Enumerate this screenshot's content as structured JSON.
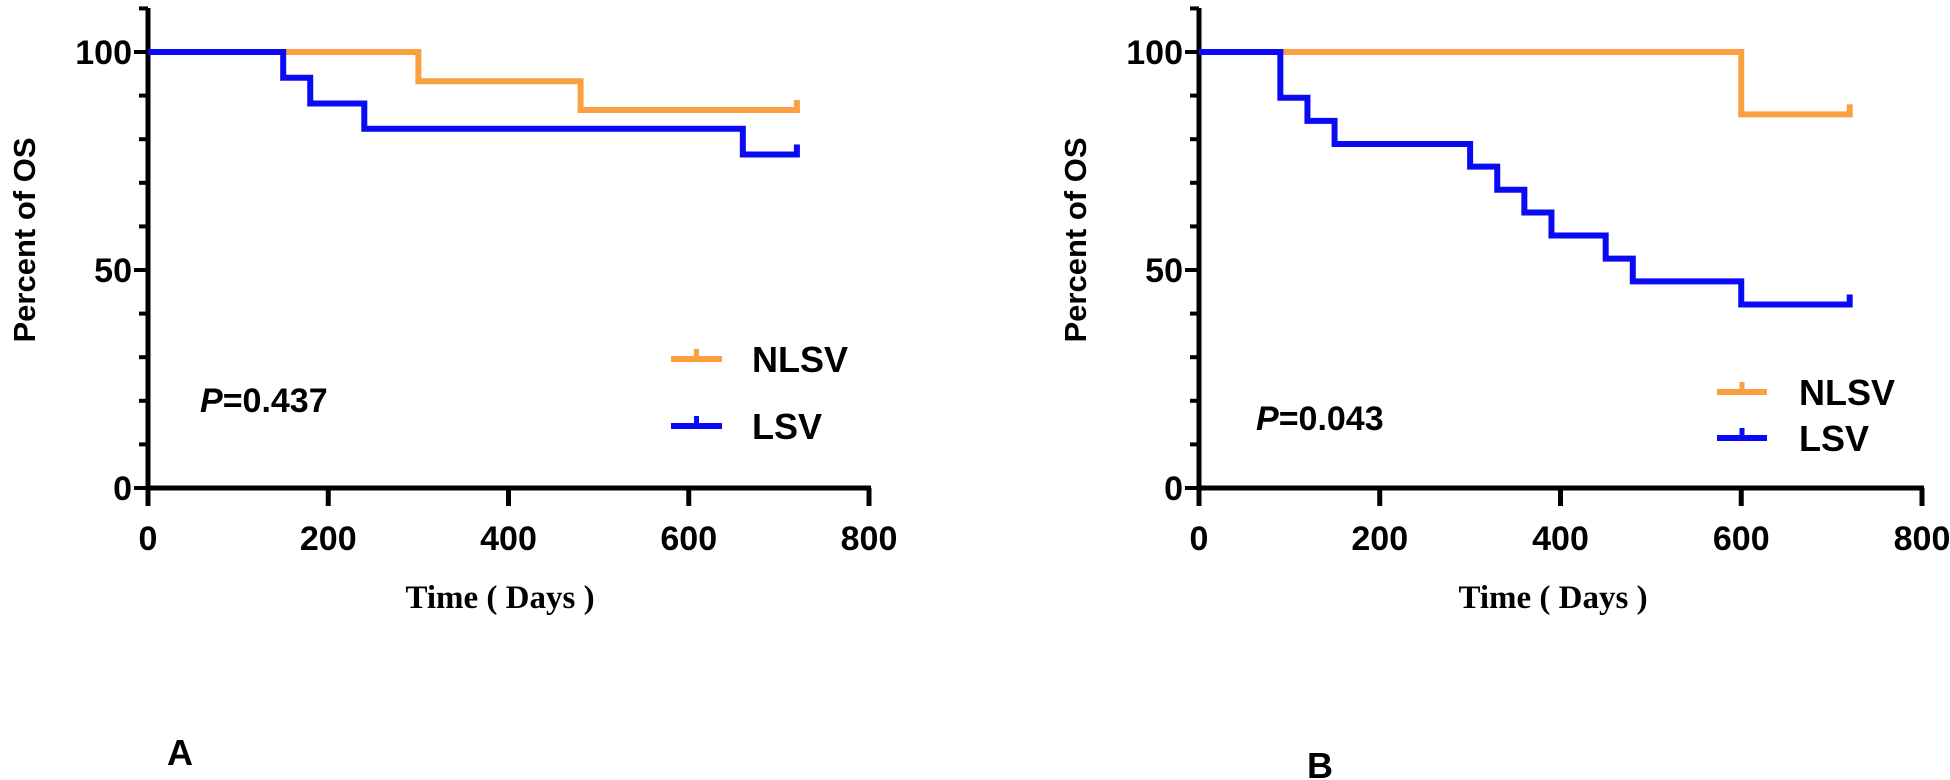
{
  "colors": {
    "NLSV": "#FBA040",
    "LSV": "#0A0AF5",
    "axis": "#000000"
  },
  "chart_data": [
    {
      "type": "line",
      "subtype": "kaplan-meier step",
      "panel_label": "A",
      "xlabel": "Time ( Days )",
      "ylabel": "Percent of OS",
      "xlim": [
        0,
        800
      ],
      "ylim": [
        0,
        110
      ],
      "xticks": [
        "0",
        "200",
        "400",
        "600",
        "800"
      ],
      "yticks": [
        "0",
        "50",
        "100"
      ],
      "annotation": {
        "prefix": "P",
        "text": "=0.437"
      },
      "legend_position": "lower-right",
      "series": [
        {
          "name": "NLSV",
          "color_key": "NLSV",
          "x": [
            0,
            300,
            480,
            720
          ],
          "y": [
            100,
            93.3,
            86.7,
            86.7
          ],
          "censored_at": [
            720
          ]
        },
        {
          "name": "LSV",
          "color_key": "LSV",
          "x": [
            0,
            150,
            180,
            240,
            660,
            720
          ],
          "y": [
            100,
            94.1,
            88.2,
            82.4,
            76.5,
            76.5
          ],
          "censored_at": [
            720
          ]
        }
      ]
    },
    {
      "type": "line",
      "subtype": "kaplan-meier step",
      "panel_label": "B",
      "xlabel": "Time ( Days )",
      "ylabel": "Percent of OS",
      "xlim": [
        0,
        800
      ],
      "ylim": [
        0,
        110
      ],
      "xticks": [
        "0",
        "200",
        "400",
        "600",
        "800"
      ],
      "yticks": [
        "0",
        "50",
        "100"
      ],
      "annotation": {
        "prefix": "P",
        "text": "=0.043"
      },
      "legend_position": "lower-right",
      "series": [
        {
          "name": "NLSV",
          "color_key": "NLSV",
          "x": [
            0,
            600,
            720
          ],
          "y": [
            100,
            85.7,
            85.7
          ],
          "censored_at": [
            720
          ]
        },
        {
          "name": "LSV",
          "color_key": "LSV",
          "x": [
            0,
            90,
            120,
            150,
            300,
            330,
            360,
            390,
            450,
            480,
            600,
            720
          ],
          "y": [
            100,
            89.5,
            84.2,
            78.9,
            73.7,
            68.4,
            63.2,
            57.9,
            52.6,
            47.4,
            42.1,
            42.1
          ],
          "censored_at": [
            720
          ]
        }
      ]
    }
  ]
}
